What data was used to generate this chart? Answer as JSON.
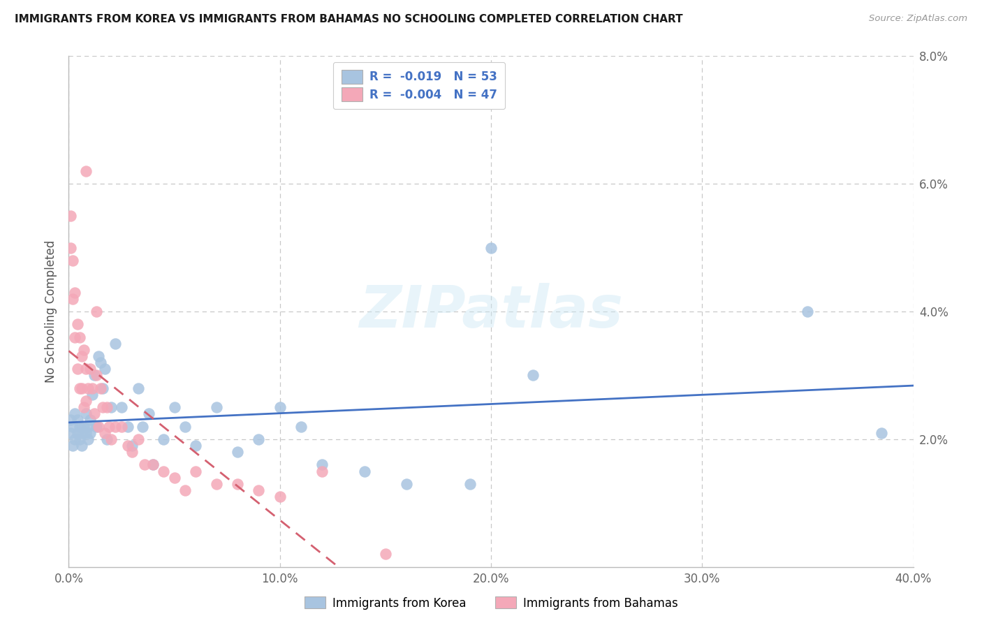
{
  "title": "IMMIGRANTS FROM KOREA VS IMMIGRANTS FROM BAHAMAS NO SCHOOLING COMPLETED CORRELATION CHART",
  "source": "Source: ZipAtlas.com",
  "ylabel": "No Schooling Completed",
  "xlim": [
    0.0,
    0.4
  ],
  "ylim": [
    0.0,
    0.08
  ],
  "xtick_labels": [
    "0.0%",
    "10.0%",
    "20.0%",
    "30.0%",
    "40.0%"
  ],
  "xtick_values": [
    0.0,
    0.1,
    0.2,
    0.3,
    0.4
  ],
  "ytick_labels": [
    "2.0%",
    "4.0%",
    "6.0%",
    "8.0%"
  ],
  "ytick_values": [
    0.02,
    0.04,
    0.06,
    0.08
  ],
  "legend_label1": "Immigrants from Korea",
  "legend_label2": "Immigrants from Bahamas",
  "korea_R": "-0.019",
  "korea_N": "53",
  "bahamas_R": "-0.004",
  "bahamas_N": "47",
  "korea_color": "#a8c4e0",
  "bahamas_color": "#f4a8b8",
  "korea_line_color": "#4472c4",
  "bahamas_line_color": "#d46070",
  "background_color": "#ffffff",
  "grid_color": "#c8c8c8",
  "watermark": "ZIPatlas",
  "korea_x": [
    0.001,
    0.001,
    0.002,
    0.002,
    0.003,
    0.003,
    0.004,
    0.004,
    0.005,
    0.005,
    0.006,
    0.006,
    0.007,
    0.008,
    0.008,
    0.009,
    0.009,
    0.01,
    0.01,
    0.011,
    0.012,
    0.013,
    0.014,
    0.015,
    0.016,
    0.017,
    0.018,
    0.02,
    0.022,
    0.025,
    0.028,
    0.03,
    0.033,
    0.035,
    0.038,
    0.04,
    0.045,
    0.05,
    0.055,
    0.06,
    0.07,
    0.08,
    0.09,
    0.1,
    0.11,
    0.12,
    0.14,
    0.16,
    0.19,
    0.2,
    0.22,
    0.35,
    0.385
  ],
  "korea_y": [
    0.021,
    0.023,
    0.022,
    0.019,
    0.024,
    0.02,
    0.021,
    0.023,
    0.02,
    0.022,
    0.021,
    0.019,
    0.022,
    0.024,
    0.021,
    0.02,
    0.022,
    0.023,
    0.021,
    0.027,
    0.03,
    0.022,
    0.033,
    0.032,
    0.028,
    0.031,
    0.02,
    0.025,
    0.035,
    0.025,
    0.022,
    0.019,
    0.028,
    0.022,
    0.024,
    0.016,
    0.02,
    0.025,
    0.022,
    0.019,
    0.025,
    0.018,
    0.02,
    0.025,
    0.022,
    0.016,
    0.015,
    0.013,
    0.013,
    0.05,
    0.03,
    0.04,
    0.021
  ],
  "bahamas_x": [
    0.001,
    0.001,
    0.002,
    0.002,
    0.003,
    0.003,
    0.004,
    0.004,
    0.005,
    0.005,
    0.006,
    0.006,
    0.007,
    0.007,
    0.008,
    0.008,
    0.009,
    0.01,
    0.011,
    0.012,
    0.013,
    0.014,
    0.015,
    0.016,
    0.017,
    0.018,
    0.019,
    0.02,
    0.022,
    0.025,
    0.028,
    0.03,
    0.033,
    0.036,
    0.04,
    0.045,
    0.05,
    0.055,
    0.06,
    0.07,
    0.08,
    0.09,
    0.1,
    0.12,
    0.15,
    0.008,
    0.013
  ],
  "bahamas_y": [
    0.055,
    0.05,
    0.048,
    0.042,
    0.043,
    0.036,
    0.038,
    0.031,
    0.036,
    0.028,
    0.033,
    0.028,
    0.034,
    0.025,
    0.031,
    0.026,
    0.028,
    0.031,
    0.028,
    0.024,
    0.03,
    0.022,
    0.028,
    0.025,
    0.021,
    0.025,
    0.022,
    0.02,
    0.022,
    0.022,
    0.019,
    0.018,
    0.02,
    0.016,
    0.016,
    0.015,
    0.014,
    0.012,
    0.015,
    0.013,
    0.013,
    0.012,
    0.011,
    0.015,
    0.002,
    0.062,
    0.04
  ]
}
